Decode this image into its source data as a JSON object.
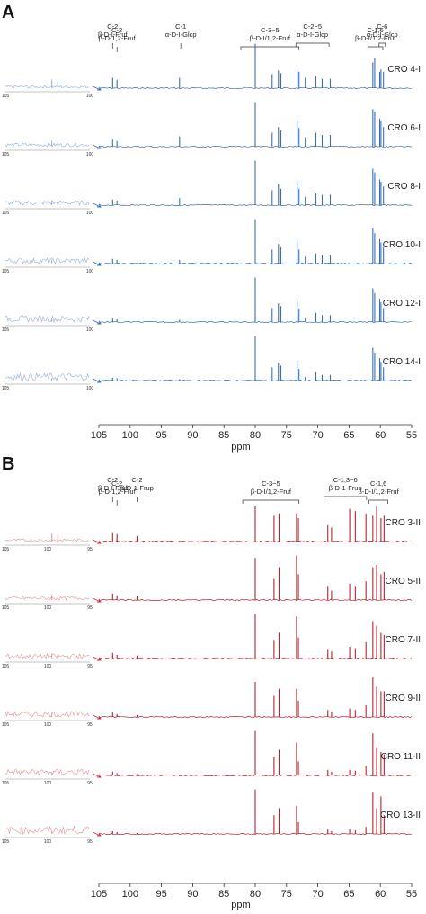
{
  "panels": [
    {
      "letter": "A",
      "color": "#3a6fb5",
      "inset_color": "#8fb0db",
      "arrow_color": "#3a6fb5",
      "xlabel": "ppm",
      "x_ticks": [
        "105",
        "100",
        "95",
        "90",
        "85",
        "80",
        "75",
        "70",
        "65",
        "60",
        "55"
      ],
      "inset_ticks": [
        "105",
        "100"
      ],
      "annotations": [
        {
          "lines": [
            "C-2",
            "β-D-I-Fruf"
          ],
          "bracket": "tick",
          "at": 102.8
        },
        {
          "lines": [
            "C-2",
            "β-D-1,2-Fruf"
          ],
          "bracket": "tick",
          "at": 102.1
        },
        {
          "lines": [
            "C-1",
            "α-D-I-Glcp"
          ],
          "bracket": "tick",
          "at": 91.9
        },
        {
          "lines": [
            "C-3~5",
            "β-D-I/1,2-Fruf"
          ],
          "bracket": "range",
          "from": 82.3,
          "to": 73.0
        },
        {
          "lines": [
            "C-2~5",
            "α-D-I-Glcp"
          ],
          "bracket": "range",
          "from": 73.5,
          "to": 68.2
        },
        {
          "lines": [
            "C-1,6",
            "β-D-I/1,2-Fruf"
          ],
          "bracket": "range",
          "from": 62.0,
          "to": 59.6
        },
        {
          "lines": [
            "C-6",
            "α-D-I-Glcp"
          ],
          "bracket": "range",
          "from": 60.2,
          "to": 59.2
        }
      ],
      "samples": [
        "CRO 4-I",
        "CRO 6-I",
        "CRO 8-I",
        "CRO 10-I",
        "CRO 12-I",
        "CRO 14-I"
      ]
    },
    {
      "letter": "B",
      "color": "#b32431",
      "inset_color": "#e59097",
      "arrow_color": "#c83440",
      "xlabel": "ppm",
      "x_ticks": [
        "105",
        "100",
        "95",
        "90",
        "85",
        "80",
        "75",
        "70",
        "65",
        "60",
        "55"
      ],
      "inset_ticks": [
        "105",
        "100",
        "95"
      ],
      "annotations": [
        {
          "lines": [
            "C-2",
            "β-D-I-Fruf"
          ],
          "bracket": "tick",
          "at": 102.8
        },
        {
          "lines": [
            "C-2",
            "β-D-1,2-Fruf"
          ],
          "bracket": "tick",
          "at": 102.1
        },
        {
          "lines": [
            "C-2",
            "β-D-1-Frup"
          ],
          "bracket": "tick",
          "at": 98.9
        },
        {
          "lines": [
            "C-3~5",
            "β-D-I/1,2-Fruf"
          ],
          "bracket": "range",
          "from": 82.0,
          "to": 73.0
        },
        {
          "lines": [
            "C-1,3~6",
            "β-D-1-Frup"
          ],
          "bracket": "range",
          "from": 69.0,
          "to": 62.2
        },
        {
          "lines": [
            "C-1,6",
            "β-D-I/1,2-Fruf"
          ],
          "bracket": "range",
          "from": 61.8,
          "to": 58.8
        }
      ],
      "samples": [
        "CRO 3-II",
        "CRO 5-II",
        "CRO 7-II",
        "CRO 9-II",
        "CRO 11-II",
        "CRO 13-II"
      ]
    }
  ],
  "chart_data": [
    {
      "type": "line",
      "panel": "A",
      "xlabel": "ppm",
      "xlim": [
        105,
        55
      ],
      "peak_positions_ppm": [
        102.8,
        102.1,
        92.1,
        80.0,
        77.3,
        76.3,
        75.9,
        73.3,
        73.0,
        72.0,
        70.3,
        69.3,
        68.0,
        61.2,
        60.9,
        60.1,
        59.9,
        59.5
      ],
      "series": [
        {
          "name": "CRO 4-I",
          "values": [
            0.22,
            0.18,
            0.22,
            0.95,
            0.3,
            0.38,
            0.32,
            0.38,
            0.35,
            0.22,
            0.25,
            0.2,
            0.2,
            0.55,
            0.65,
            0.35,
            0.4,
            0.35
          ]
        },
        {
          "name": "CRO 6-I",
          "values": [
            0.15,
            0.12,
            0.22,
            0.95,
            0.3,
            0.42,
            0.35,
            0.55,
            0.4,
            0.2,
            0.3,
            0.25,
            0.25,
            0.8,
            0.75,
            0.6,
            0.55,
            0.42
          ]
        },
        {
          "name": "CRO 8-I",
          "values": [
            0.12,
            0.1,
            0.15,
            0.95,
            0.32,
            0.45,
            0.35,
            0.5,
            0.35,
            0.18,
            0.25,
            0.22,
            0.22,
            0.78,
            0.7,
            0.55,
            0.5,
            0.4
          ]
        },
        {
          "name": "CRO 10-I",
          "values": [
            0.1,
            0.08,
            0.08,
            0.95,
            0.3,
            0.42,
            0.35,
            0.48,
            0.3,
            0.15,
            0.22,
            0.18,
            0.18,
            0.75,
            0.65,
            0.52,
            0.45,
            0.35
          ]
        },
        {
          "name": "CRO 12-I",
          "values": [
            0.08,
            0.06,
            0.05,
            0.95,
            0.3,
            0.4,
            0.34,
            0.45,
            0.28,
            0.1,
            0.2,
            0.15,
            0.15,
            0.72,
            0.62,
            0.5,
            0.42,
            0.3
          ]
        },
        {
          "name": "CRO 14-I",
          "values": [
            0.06,
            0.05,
            0.03,
            0.95,
            0.28,
            0.38,
            0.32,
            0.42,
            0.25,
            0.08,
            0.18,
            0.12,
            0.12,
            0.7,
            0.6,
            0.48,
            0.4,
            0.28
          ]
        }
      ]
    },
    {
      "type": "line",
      "panel": "B",
      "xlabel": "ppm",
      "xlim": [
        105,
        55
      ],
      "peak_positions_ppm": [
        102.8,
        102.1,
        98.9,
        80.0,
        77.0,
        76.2,
        73.4,
        73.1,
        68.4,
        67.8,
        64.9,
        64.0,
        62.3,
        61.2,
        60.6,
        59.9,
        59.4
      ],
      "series": [
        {
          "name": "CRO 3-II",
          "values": [
            0.2,
            0.16,
            0.12,
            0.75,
            0.55,
            0.6,
            0.6,
            0.5,
            0.35,
            0.3,
            0.7,
            0.65,
            0.6,
            0.55,
            0.75,
            0.5,
            0.55
          ]
        },
        {
          "name": "CRO 5-II",
          "values": [
            0.14,
            0.1,
            0.08,
            0.9,
            0.45,
            0.7,
            0.95,
            0.55,
            0.3,
            0.2,
            0.35,
            0.3,
            0.4,
            0.7,
            0.75,
            0.55,
            0.6
          ]
        },
        {
          "name": "CRO 7-II",
          "values": [
            0.12,
            0.08,
            0.06,
            0.95,
            0.4,
            0.55,
            0.9,
            0.45,
            0.2,
            0.15,
            0.25,
            0.22,
            0.35,
            0.8,
            0.7,
            0.55,
            0.5
          ]
        },
        {
          "name": "CRO 9-II",
          "values": [
            0.1,
            0.06,
            0.04,
            0.75,
            0.45,
            0.6,
            0.6,
            0.35,
            0.15,
            0.1,
            0.18,
            0.15,
            0.25,
            0.85,
            0.65,
            0.55,
            0.55
          ]
        },
        {
          "name": "CRO 11-II",
          "values": [
            0.08,
            0.05,
            0.03,
            0.95,
            0.4,
            0.55,
            0.7,
            0.3,
            0.12,
            0.08,
            0.12,
            0.1,
            0.2,
            0.9,
            0.6,
            0.5,
            0.45
          ]
        },
        {
          "name": "CRO 13-II",
          "values": [
            0.06,
            0.04,
            0.02,
            0.95,
            0.4,
            0.55,
            0.6,
            0.25,
            0.1,
            0.06,
            0.1,
            0.08,
            0.15,
            0.9,
            0.55,
            0.8,
            0.4
          ]
        }
      ]
    }
  ]
}
